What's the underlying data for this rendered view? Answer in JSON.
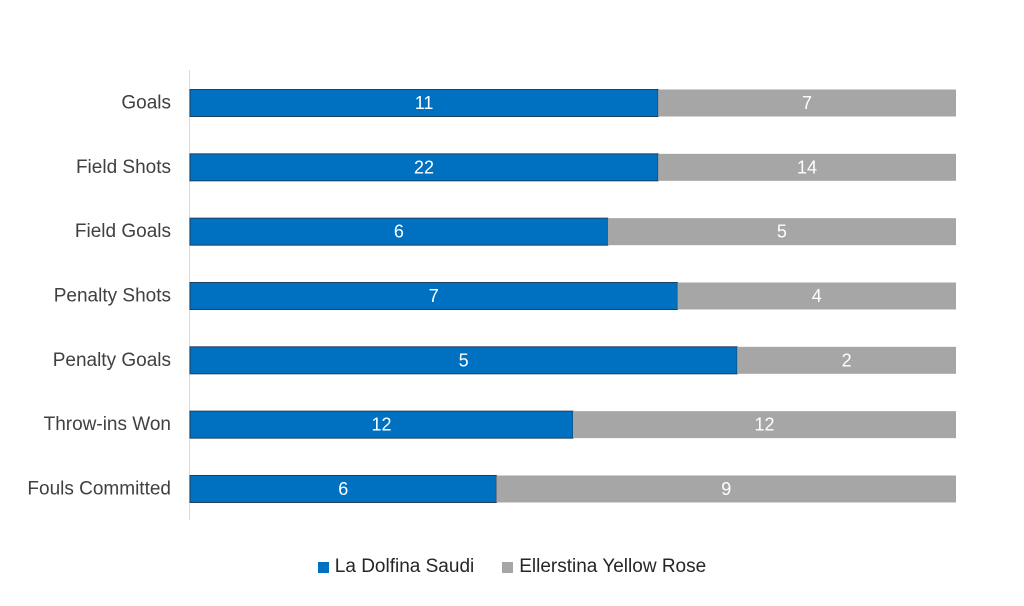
{
  "chart_data": {
    "type": "bar",
    "orientation": "horizontal",
    "stacked": "percent",
    "categories": [
      "Goals",
      "Field Shots",
      "Field Goals",
      "Penalty Shots",
      "Penalty Goals",
      "Throw-ins Won",
      "Fouls Committed"
    ],
    "series": [
      {
        "name": "La Dolfina Saudi",
        "values": [
          11,
          22,
          6,
          7,
          5,
          12,
          6
        ],
        "color": "#0070C0"
      },
      {
        "name": "Ellerstina Yellow Rose",
        "values": [
          7,
          14,
          5,
          4,
          2,
          12,
          9
        ],
        "color": "#A6A6A6"
      }
    ],
    "title": "",
    "xlabel": "",
    "ylabel": "",
    "legend_position": "bottom",
    "grid": false,
    "data_labels": true
  }
}
